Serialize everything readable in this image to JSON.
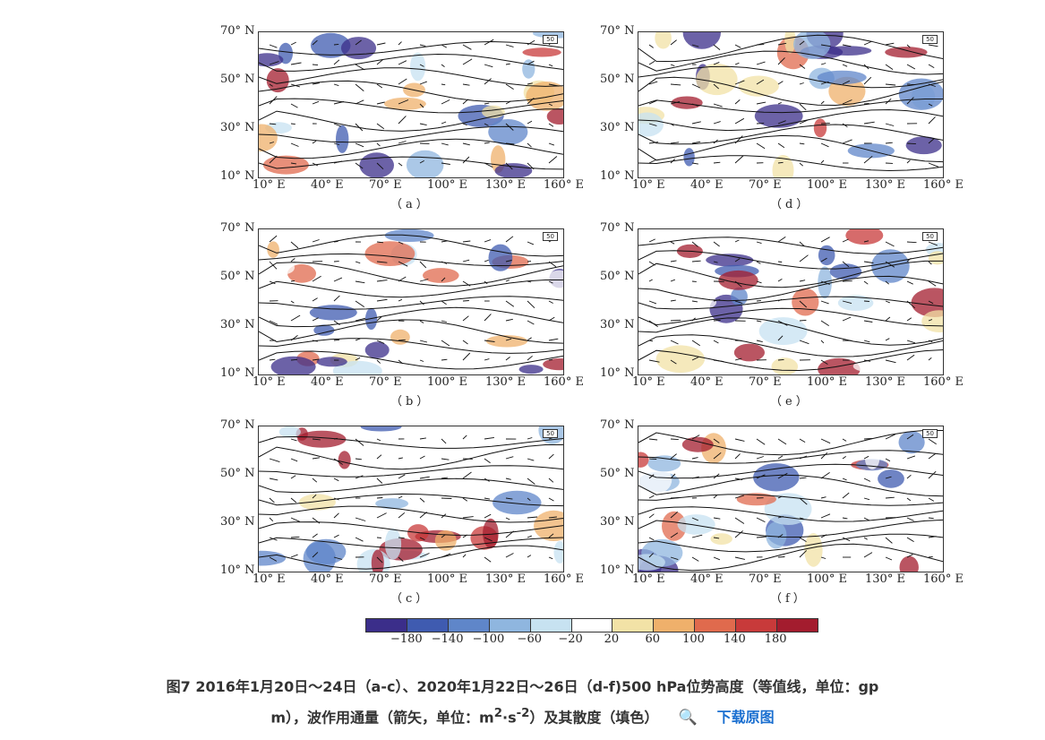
{
  "panels": [
    {
      "id": "a",
      "label": "（a）",
      "tag": "50"
    },
    {
      "id": "d",
      "label": "（d）",
      "tag": "50"
    },
    {
      "id": "b",
      "label": "（b）",
      "tag": "50"
    },
    {
      "id": "e",
      "label": "（e）",
      "tag": "50"
    },
    {
      "id": "c",
      "label": "（c）",
      "tag": "50"
    },
    {
      "id": "f",
      "label": "（f）",
      "tag": "50"
    }
  ],
  "y_ticks": [
    "70° N",
    "50° N",
    "30° N",
    "10° N"
  ],
  "x_ticks": [
    "10° E",
    "40° E",
    "70° E",
    "100° E",
    "130° E",
    "160° E"
  ],
  "colorbar": {
    "colors": [
      "#3b2e8a",
      "#3f5bb0",
      "#5f86c9",
      "#8fb6df",
      "#c7e2f1",
      "#ffffff",
      "#f2e2a6",
      "#efb06b",
      "#e06a4d",
      "#c83a3a",
      "#a31c2e"
    ],
    "ticks": [
      "−180",
      "−140",
      "−100",
      "−60",
      "−20",
      "20",
      "60",
      "100",
      "140",
      "180"
    ]
  },
  "caption": {
    "line1": "图7 2016年1月20日～24日（a-c）、2020年1月22日～26日（d-f)500 hPa位势高度（等值线，单位：gp",
    "line2_pre": "m），波作用通量（箭矢，单位：m",
    "sup1": "2",
    "mid": "·s",
    "sup2": "-2",
    "line2_post": "）及其散度（填色）",
    "zoom_icon": "zoom-in-icon",
    "download": "下载原图"
  }
}
